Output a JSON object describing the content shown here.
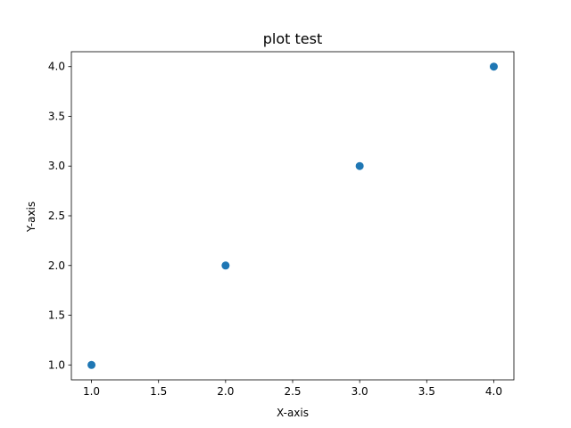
{
  "chart_data": {
    "type": "scatter",
    "title": "plot test",
    "xlabel": "X-axis",
    "ylabel": "Y-axis",
    "x": [
      1,
      2,
      3,
      4
    ],
    "y": [
      1,
      2,
      3,
      4
    ],
    "xlim": [
      0.85,
      4.15
    ],
    "ylim": [
      0.85,
      4.15
    ],
    "xticks": [
      "1.0",
      "1.5",
      "2.0",
      "2.5",
      "3.0",
      "3.5",
      "4.0"
    ],
    "yticks": [
      "1.0",
      "1.5",
      "2.0",
      "2.5",
      "3.0",
      "3.5",
      "4.0"
    ],
    "grid": false,
    "legend": "none",
    "marker_color": "#1f77b4"
  }
}
